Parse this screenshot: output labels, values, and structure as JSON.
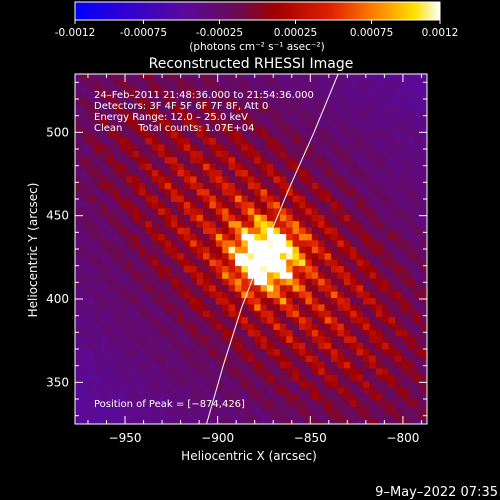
{
  "colors": {
    "background": "#000000",
    "foreground": "#ffffff",
    "limb_line": "#ffffff"
  },
  "colorbar": {
    "tick_labels": [
      "-0.0012",
      "-0.00075",
      "-0.00025",
      "0.00025",
      "0.00075",
      "0.0012"
    ],
    "range": [
      -0.0012,
      0.0012
    ],
    "units": "(photons cm⁻² s⁻¹ asec⁻²)",
    "colormap": "blue-purple-red-yellow-white"
  },
  "chart_data": {
    "type": "heatmap",
    "title": "Reconstructed RHESSI Image",
    "xlabel": "Heliocentric X (arcsec)",
    "ylabel": "Heliocentric Y (arcsec)",
    "xlim": [
      -977,
      -787
    ],
    "ylim": [
      325,
      535
    ],
    "x_ticks": [
      -950,
      -900,
      -850,
      -800
    ],
    "y_ticks": [
      350,
      400,
      450,
      500
    ],
    "x_tick_labels": [
      "−950",
      "−900",
      "−850",
      "−800"
    ],
    "y_tick_labels": [
      "350",
      "400",
      "450",
      "500"
    ],
    "peak": {
      "x": -874,
      "y": 426
    },
    "limb_curve": [
      [
        -906,
        325
      ],
      [
        -897,
        360
      ],
      [
        -887,
        395
      ],
      [
        -875,
        430
      ],
      [
        -862,
        465
      ],
      [
        -848,
        500
      ],
      [
        -835,
        535
      ]
    ],
    "annotations": [
      "24–Feb–2011 21:48:36.000 to 21:54:36.000",
      "Detectors: 3F 4F 5F 6F 7F 8F, Att 0",
      "Energy Range: 12.0 – 25.0 keV",
      "Clean     Total counts: 1.07E+04"
    ],
    "peak_label": "Position of Peak = [−874,426]"
  },
  "footer": {
    "timestamp": "9–May–2022 07:35"
  }
}
